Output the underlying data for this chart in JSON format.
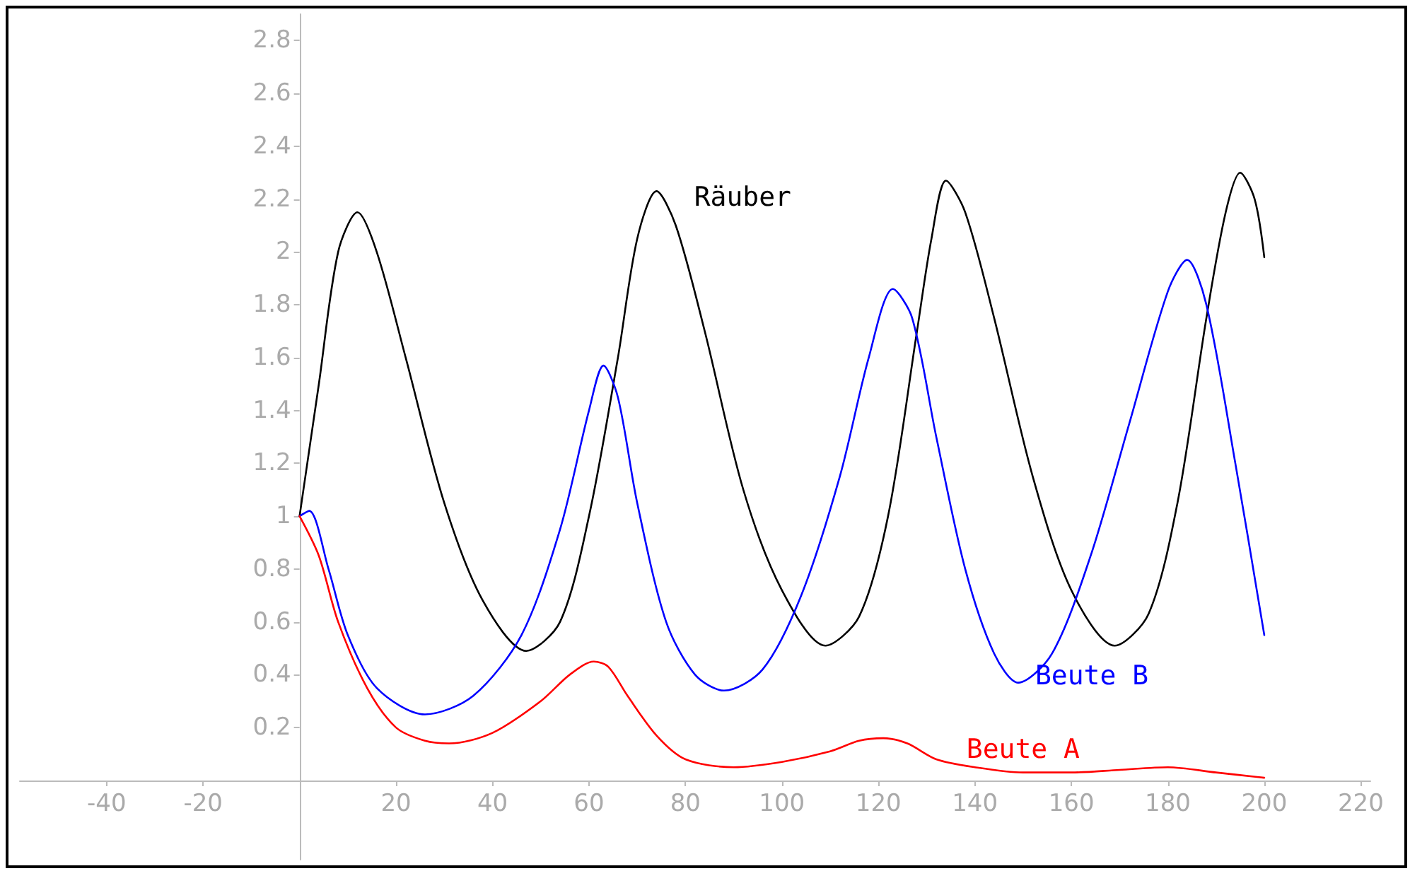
{
  "chart_data": {
    "type": "line",
    "xlim": [
      -58,
      222
    ],
    "ylim": [
      -0.3,
      2.9
    ],
    "xticks": [
      -40,
      -20,
      20,
      40,
      60,
      80,
      100,
      120,
      140,
      160,
      180,
      200,
      220
    ],
    "yticks": [
      0.2,
      0.4,
      0.6,
      0.8,
      1,
      1.2,
      1.4,
      1.6,
      1.8,
      2,
      2.2,
      2.4,
      2.6,
      2.8
    ],
    "grid": false,
    "legend": false,
    "marker": "none",
    "line_style": "solid",
    "series": [
      {
        "name": "Räuber",
        "color": "#000000",
        "x": [
          0,
          4,
          8,
          12,
          16,
          22,
          30,
          38,
          47,
          54,
          60,
          66,
          70,
          74,
          78,
          84,
          92,
          100,
          109,
          116,
          122,
          128,
          131,
          134,
          138,
          144,
          152,
          160,
          169,
          176,
          182,
          188,
          192,
          195,
          198,
          200
        ],
        "values": [
          1,
          1.5,
          2.0,
          2.15,
          2.0,
          1.6,
          1.05,
          0.68,
          0.49,
          0.6,
          1.0,
          1.6,
          2.05,
          2.23,
          2.1,
          1.7,
          1.1,
          0.72,
          0.51,
          0.62,
          1.0,
          1.7,
          2.05,
          2.27,
          2.15,
          1.75,
          1.15,
          0.72,
          0.51,
          0.63,
          1.05,
          1.75,
          2.15,
          2.3,
          2.2,
          1.98
        ]
      },
      {
        "name": "Beute B",
        "color": "#0000ff",
        "x": [
          0,
          2,
          6,
          10,
          16,
          26,
          36,
          46,
          54,
          60,
          63,
          66,
          70,
          76,
          82,
          88,
          96,
          104,
          112,
          118,
          123,
          127,
          132,
          138,
          144,
          149,
          156,
          164,
          172,
          180,
          184,
          188,
          194,
          200
        ],
        "values": [
          1,
          1.02,
          0.8,
          0.55,
          0.35,
          0.25,
          0.32,
          0.55,
          0.95,
          1.4,
          1.57,
          1.45,
          1.05,
          0.6,
          0.4,
          0.34,
          0.42,
          0.7,
          1.15,
          1.6,
          1.86,
          1.75,
          1.3,
          0.8,
          0.48,
          0.37,
          0.48,
          0.85,
          1.35,
          1.85,
          1.97,
          1.8,
          1.2,
          0.55
        ]
      },
      {
        "name": "Beute A",
        "color": "#ff0000",
        "x": [
          0,
          4,
          8,
          14,
          20,
          26,
          31,
          40,
          50,
          56,
          61,
          64,
          68,
          74,
          80,
          90,
          100,
          110,
          116,
          121,
          126,
          132,
          140,
          150,
          160,
          170,
          180,
          190,
          200
        ],
        "values": [
          1,
          0.85,
          0.6,
          0.35,
          0.2,
          0.15,
          0.14,
          0.18,
          0.3,
          0.4,
          0.45,
          0.43,
          0.32,
          0.17,
          0.08,
          0.05,
          0.07,
          0.11,
          0.15,
          0.16,
          0.14,
          0.08,
          0.05,
          0.03,
          0.03,
          0.04,
          0.05,
          0.03,
          0.01
        ]
      }
    ]
  }
}
